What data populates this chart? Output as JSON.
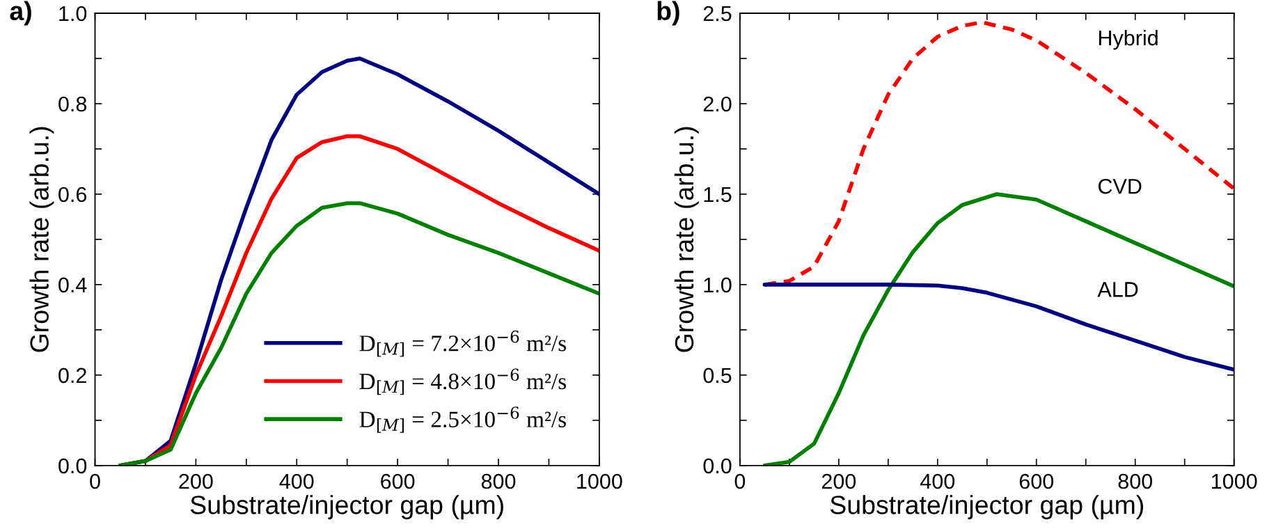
{
  "chart_data": [
    {
      "type": "line",
      "title": "a)",
      "xlabel": "Substrate/injector gap (µm)",
      "ylabel": "Growth rate (arb.u.)",
      "xlim": [
        0,
        1000
      ],
      "ylim": [
        0,
        1.0
      ],
      "xticks": [
        0,
        {
          "value": 100,
          "label": null
        },
        200,
        {
          "value": 300,
          "label": null
        },
        400,
        {
          "value": 500,
          "label": null
        },
        600,
        {
          "value": 700,
          "label": null
        },
        800,
        {
          "value": 900,
          "label": null
        },
        1000
      ],
      "yticks": [
        {
          "value": 0,
          "label": "0.0"
        },
        {
          "value": 0.1,
          "label": null
        },
        0.2,
        {
          "value": 0.3,
          "label": null
        },
        0.4,
        {
          "value": 0.5,
          "label": null
        },
        0.6,
        {
          "value": 0.7,
          "label": null
        },
        0.8,
        {
          "value": 0.9,
          "label": null
        },
        {
          "value": 1.0,
          "label": "1.0"
        }
      ],
      "grid": false,
      "legend": "bottom right",
      "line_style": "solid",
      "marker": "none",
      "x": [
        50,
        100,
        150,
        200,
        250,
        300,
        350,
        400,
        450,
        500,
        525,
        600,
        700,
        800,
        900,
        1000
      ],
      "series": [
        {
          "name": "D$_{[M]}$ = 7.2×10$^{−6}$ m²/s",
          "color": "#000080",
          "values": [
            0,
            0.01,
            0.055,
            0.225,
            0.41,
            0.57,
            0.72,
            0.82,
            0.87,
            0.895,
            0.9,
            0.865,
            0.805,
            0.74,
            0.67,
            0.6
          ]
        },
        {
          "name": "D$_{[M]}$ = 4.8×10$^{−6}$ m²/s",
          "color": "#ff0000",
          "values": [
            0,
            0.01,
            0.045,
            0.2,
            0.33,
            0.47,
            0.59,
            0.68,
            0.715,
            0.728,
            0.728,
            0.7,
            0.64,
            0.58,
            0.525,
            0.475
          ]
        },
        {
          "name": "D$_{[M]}$ = 2.5×10$^{−6}$ m²/s",
          "color": "#008000",
          "values": [
            0,
            0.01,
            0.035,
            0.16,
            0.26,
            0.38,
            0.47,
            0.53,
            0.57,
            0.58,
            0.58,
            0.557,
            0.51,
            0.47,
            0.425,
            0.38
          ]
        }
      ]
    },
    {
      "type": "line",
      "title": "b)",
      "xlabel": "Substrate/injector gap (µm)",
      "ylabel": "Growth rate (arb.u.)",
      "xlim": [
        0,
        1000
      ],
      "ylim": [
        0,
        2.5
      ],
      "xticks": [
        0,
        {
          "value": 100,
          "label": null
        },
        200,
        {
          "value": 300,
          "label": null
        },
        400,
        {
          "value": 500,
          "label": null
        },
        600,
        {
          "value": 700,
          "label": null
        },
        800,
        {
          "value": 900,
          "label": null
        },
        1000
      ],
      "yticks": [
        {
          "value": 0,
          "label": "0.0"
        },
        {
          "value": 0.25,
          "label": null
        },
        0.5,
        {
          "value": 0.75,
          "label": null
        },
        {
          "value": 1.0,
          "label": "1.0"
        },
        {
          "value": 1.25,
          "label": null
        },
        1.5,
        {
          "value": 1.75,
          "label": null
        },
        {
          "value": 2.0,
          "label": "2.0"
        },
        {
          "value": 2.25,
          "label": null
        },
        2.5
      ],
      "grid": false,
      "legend": false,
      "marker": "none",
      "series": [
        {
          "name": "Hybrid",
          "color": "#ff0000",
          "line_style": "dashed",
          "x": [
            50,
            100,
            150,
            200,
            250,
            300,
            350,
            400,
            450,
            490,
            550,
            600,
            700,
            800,
            900,
            1000
          ],
          "values": [
            1.0,
            1.02,
            1.1,
            1.35,
            1.75,
            2.05,
            2.25,
            2.37,
            2.43,
            2.45,
            2.41,
            2.35,
            2.17,
            1.97,
            1.75,
            1.53
          ]
        },
        {
          "name": "CVD",
          "color": "#008000",
          "line_style": "solid",
          "x": [
            50,
            100,
            150,
            200,
            250,
            300,
            350,
            400,
            450,
            520,
            600,
            700,
            800,
            900,
            1000
          ],
          "values": [
            0,
            0.02,
            0.12,
            0.4,
            0.72,
            0.97,
            1.18,
            1.34,
            1.44,
            1.5,
            1.47,
            1.35,
            1.23,
            1.11,
            0.99
          ]
        },
        {
          "name": "ALD",
          "color": "#000080",
          "line_style": "solid",
          "x": [
            50,
            300,
            400,
            450,
            500,
            600,
            700,
            800,
            900,
            1000
          ],
          "values": [
            1.0,
            1.0,
            0.995,
            0.98,
            0.955,
            0.88,
            0.78,
            0.69,
            0.6,
            0.53
          ]
        }
      ]
    }
  ]
}
